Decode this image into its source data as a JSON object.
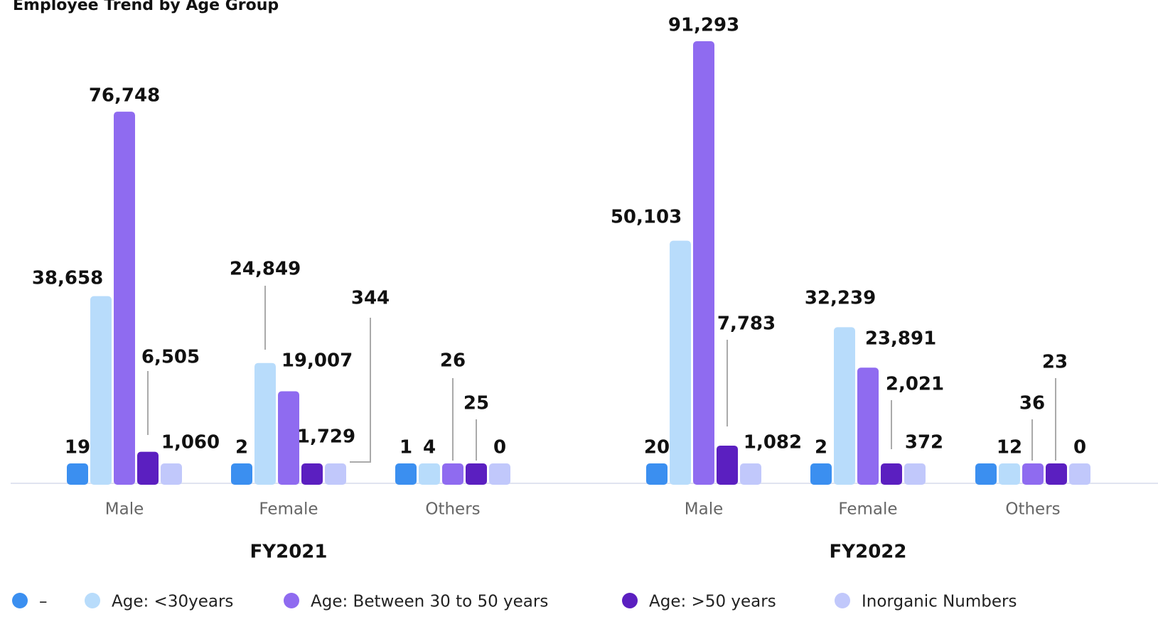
{
  "chart_data": {
    "type": "bar",
    "title": "Employee Trend by Age Group",
    "groups": [
      "FY2021",
      "FY2022"
    ],
    "categories": [
      "Male",
      "Female",
      "Others",
      "Male",
      "Female",
      "Others"
    ],
    "series": [
      {
        "name": "–",
        "color": "#3b8ff0",
        "values": [
          19,
          2,
          1,
          20,
          2,
          null
        ],
        "value_labels": [
          "19",
          "2",
          "1",
          "20",
          "2",
          null
        ]
      },
      {
        "name": "Age: <30years",
        "color": "#b8dcfb",
        "values": [
          38658,
          24849,
          4,
          50103,
          32239,
          12
        ],
        "value_labels": [
          "38,658",
          "24,849",
          "4",
          "50,103",
          "32,239",
          "12"
        ]
      },
      {
        "name": "Age: Between 30 to 50 years",
        "color": "#8f6bf0",
        "values": [
          76748,
          19007,
          26,
          91293,
          23891,
          36
        ],
        "value_labels": [
          "76,748",
          "19,007",
          "26",
          "91,293",
          "23,891",
          "36"
        ]
      },
      {
        "name": "Age: >50 years",
        "color": "#5b1fc0",
        "values": [
          6505,
          1729,
          25,
          7783,
          2021,
          23
        ],
        "value_labels": [
          "6,505",
          "1,729",
          "25",
          "7,783",
          "2,021",
          "23"
        ]
      },
      {
        "name": "Inorganic Numbers",
        "color": "#c1c8fb",
        "values": [
          1060,
          344,
          0,
          1082,
          372,
          0
        ],
        "value_labels": [
          "1,060",
          "344",
          "0",
          "1,082",
          "372",
          "0"
        ]
      }
    ]
  }
}
